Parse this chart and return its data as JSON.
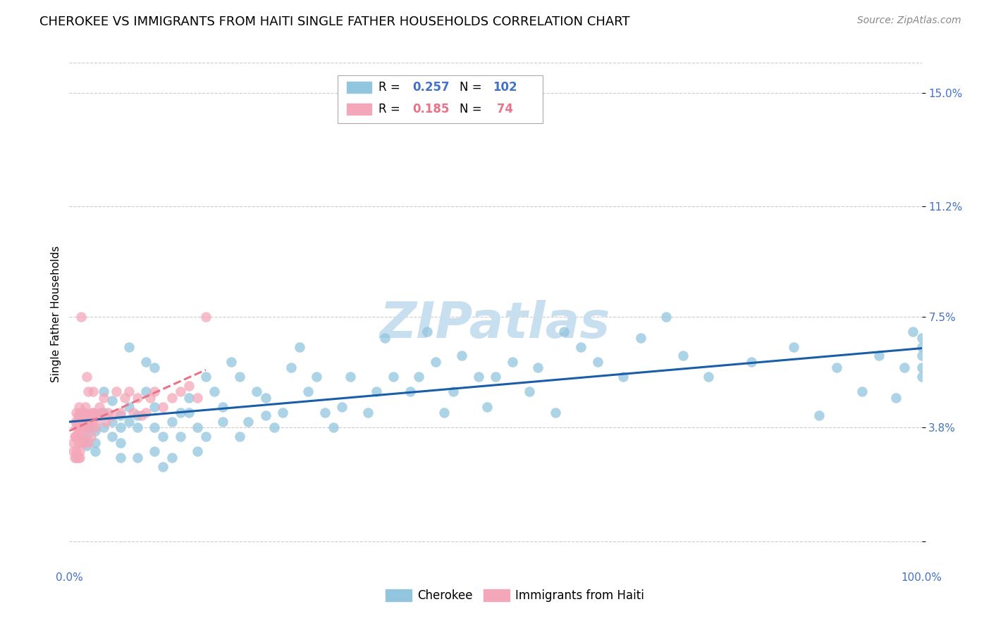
{
  "title": "CHEROKEE VS IMMIGRANTS FROM HAITI SINGLE FATHER HOUSEHOLDS CORRELATION CHART",
  "source": "Source: ZipAtlas.com",
  "ylabel": "Single Father Households",
  "ytick_vals": [
    0.0,
    0.038,
    0.075,
    0.112,
    0.15
  ],
  "ytick_labels": [
    "",
    "3.8%",
    "7.5%",
    "11.2%",
    "15.0%"
  ],
  "legend_blue_R": "0.257",
  "legend_blue_N": "102",
  "legend_pink_R": "0.185",
  "legend_pink_N": "74",
  "legend_blue_label": "Cherokee",
  "legend_pink_label": "Immigrants from Haiti",
  "blue_color": "#92C5DE",
  "pink_color": "#F4A7B9",
  "line_blue_color": "#1A5EA8",
  "line_pink_color": "#E8748A",
  "watermark": "ZIPatlas",
  "blue_scatter_x": [
    0.02,
    0.02,
    0.02,
    0.02,
    0.03,
    0.03,
    0.03,
    0.03,
    0.04,
    0.04,
    0.04,
    0.05,
    0.05,
    0.05,
    0.06,
    0.06,
    0.06,
    0.06,
    0.07,
    0.07,
    0.07,
    0.08,
    0.08,
    0.08,
    0.09,
    0.09,
    0.1,
    0.1,
    0.1,
    0.1,
    0.11,
    0.11,
    0.12,
    0.12,
    0.13,
    0.13,
    0.14,
    0.14,
    0.15,
    0.15,
    0.16,
    0.16,
    0.17,
    0.18,
    0.18,
    0.19,
    0.2,
    0.2,
    0.21,
    0.22,
    0.23,
    0.23,
    0.24,
    0.25,
    0.26,
    0.27,
    0.28,
    0.29,
    0.3,
    0.31,
    0.32,
    0.33,
    0.35,
    0.36,
    0.37,
    0.38,
    0.4,
    0.41,
    0.42,
    0.43,
    0.44,
    0.45,
    0.46,
    0.48,
    0.49,
    0.5,
    0.52,
    0.54,
    0.55,
    0.57,
    0.58,
    0.6,
    0.62,
    0.65,
    0.67,
    0.7,
    0.72,
    0.75,
    0.8,
    0.85,
    0.88,
    0.9,
    0.93,
    0.95,
    0.97,
    0.98,
    0.99,
    1.0,
    1.0,
    1.0,
    1.0,
    1.0
  ],
  "blue_scatter_y": [
    0.038,
    0.04,
    0.035,
    0.032,
    0.037,
    0.042,
    0.033,
    0.03,
    0.038,
    0.043,
    0.05,
    0.035,
    0.04,
    0.047,
    0.038,
    0.042,
    0.028,
    0.033,
    0.065,
    0.045,
    0.04,
    0.038,
    0.042,
    0.028,
    0.06,
    0.05,
    0.058,
    0.045,
    0.038,
    0.03,
    0.035,
    0.025,
    0.028,
    0.04,
    0.035,
    0.043,
    0.048,
    0.043,
    0.038,
    0.03,
    0.035,
    0.055,
    0.05,
    0.045,
    0.04,
    0.06,
    0.035,
    0.055,
    0.04,
    0.05,
    0.042,
    0.048,
    0.038,
    0.043,
    0.058,
    0.065,
    0.05,
    0.055,
    0.043,
    0.038,
    0.045,
    0.055,
    0.043,
    0.05,
    0.068,
    0.055,
    0.05,
    0.055,
    0.07,
    0.06,
    0.043,
    0.05,
    0.062,
    0.055,
    0.045,
    0.055,
    0.06,
    0.05,
    0.058,
    0.043,
    0.07,
    0.065,
    0.06,
    0.055,
    0.068,
    0.075,
    0.062,
    0.055,
    0.06,
    0.065,
    0.042,
    0.058,
    0.05,
    0.062,
    0.048,
    0.058,
    0.07,
    0.065,
    0.055,
    0.062,
    0.058,
    0.068
  ],
  "pink_scatter_x": [
    0.005,
    0.005,
    0.006,
    0.006,
    0.007,
    0.007,
    0.008,
    0.008,
    0.008,
    0.009,
    0.009,
    0.01,
    0.01,
    0.01,
    0.01,
    0.011,
    0.011,
    0.012,
    0.012,
    0.012,
    0.013,
    0.013,
    0.014,
    0.014,
    0.014,
    0.015,
    0.015,
    0.016,
    0.016,
    0.017,
    0.017,
    0.018,
    0.018,
    0.019,
    0.02,
    0.02,
    0.021,
    0.022,
    0.022,
    0.023,
    0.023,
    0.024,
    0.025,
    0.026,
    0.027,
    0.028,
    0.029,
    0.03,
    0.031,
    0.033,
    0.035,
    0.037,
    0.04,
    0.043,
    0.045,
    0.05,
    0.055,
    0.06,
    0.065,
    0.07,
    0.075,
    0.08,
    0.085,
    0.09,
    0.095,
    0.1,
    0.11,
    0.12,
    0.13,
    0.14,
    0.15,
    0.16,
    0.008,
    0.012
  ],
  "pink_scatter_y": [
    0.03,
    0.033,
    0.035,
    0.028,
    0.035,
    0.04,
    0.038,
    0.043,
    0.03,
    0.035,
    0.04,
    0.038,
    0.042,
    0.028,
    0.033,
    0.04,
    0.045,
    0.038,
    0.042,
    0.03,
    0.043,
    0.035,
    0.04,
    0.033,
    0.075,
    0.038,
    0.043,
    0.035,
    0.038,
    0.04,
    0.033,
    0.038,
    0.043,
    0.045,
    0.042,
    0.055,
    0.038,
    0.05,
    0.033,
    0.038,
    0.04,
    0.042,
    0.035,
    0.04,
    0.043,
    0.05,
    0.043,
    0.038,
    0.04,
    0.042,
    0.045,
    0.043,
    0.048,
    0.04,
    0.043,
    0.042,
    0.05,
    0.043,
    0.048,
    0.05,
    0.043,
    0.048,
    0.042,
    0.043,
    0.048,
    0.05,
    0.045,
    0.048,
    0.05,
    0.052,
    0.048,
    0.075,
    0.028,
    0.028
  ],
  "xlim": [
    0.0,
    1.0
  ],
  "ylim": [
    -0.008,
    0.16
  ],
  "background_color": "#FFFFFF",
  "grid_color": "#CCCCCC",
  "title_fontsize": 13,
  "axis_label_fontsize": 11,
  "tick_fontsize": 11,
  "legend_fontsize": 12,
  "source_fontsize": 10,
  "watermark_fontsize": 52,
  "watermark_color": "#C8DFF0",
  "tick_label_color": "#4472C4",
  "pink_label_color": "#E8748A"
}
